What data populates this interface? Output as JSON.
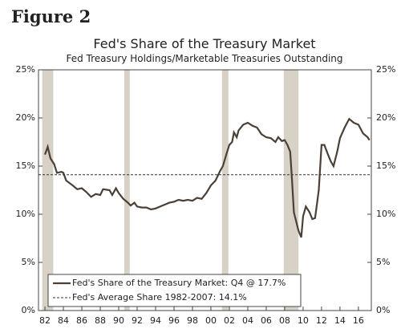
{
  "figure_label": "Figure 2",
  "chart_data": {
    "type": "line",
    "title": "Fed's Share of the Treasury Market",
    "subtitle": "Fed Treasury Holdings/Marketable Treasuries Outstanding",
    "xlim": [
      1981.3,
      2017.4
    ],
    "xticks": [
      {
        "value": 1982,
        "label": "82"
      },
      {
        "value": 1984,
        "label": "84"
      },
      {
        "value": 1986,
        "label": "86"
      },
      {
        "value": 1988,
        "label": "88"
      },
      {
        "value": 1990,
        "label": "90"
      },
      {
        "value": 1992,
        "label": "92"
      },
      {
        "value": 1994,
        "label": "94"
      },
      {
        "value": 1996,
        "label": "96"
      },
      {
        "value": 1998,
        "label": "98"
      },
      {
        "value": 2000,
        "label": "00"
      },
      {
        "value": 2002,
        "label": "02"
      },
      {
        "value": 2004,
        "label": "04"
      },
      {
        "value": 2006,
        "label": "06"
      },
      {
        "value": 2008,
        "label": "08"
      },
      {
        "value": 2010,
        "label": "10"
      },
      {
        "value": 2012,
        "label": "12"
      },
      {
        "value": 2014,
        "label": "14"
      },
      {
        "value": 2016,
        "label": "16"
      }
    ],
    "ylim": [
      0,
      25
    ],
    "yticks": [
      {
        "value": 0,
        "label": "0%"
      },
      {
        "value": 5,
        "label": "5%"
      },
      {
        "value": 10,
        "label": "10%"
      },
      {
        "value": 15,
        "label": "15%"
      },
      {
        "value": 20,
        "label": "20%"
      },
      {
        "value": 25,
        "label": "25%"
      }
    ],
    "shaded_periods": [
      [
        1981.7,
        1982.9
      ],
      [
        1990.6,
        1991.2
      ],
      [
        2001.2,
        2001.9
      ],
      [
        2007.9,
        2009.5
      ]
    ],
    "shade_color": "#d8d2c6",
    "legend": "lower left",
    "series": [
      {
        "name": "Fed's Share of the Treasury Market: Q4 @ 17.7%",
        "color": "#4b4036",
        "dash": false,
        "x": [
          1982,
          1982.3,
          1982.6,
          1983,
          1983.3,
          1983.8,
          1984,
          1984.3,
          1985,
          1985.5,
          1986,
          1986.5,
          1987,
          1987.5,
          1988,
          1988.3,
          1989,
          1989.3,
          1989.7,
          1990,
          1990.5,
          1991,
          1991.3,
          1991.7,
          1992,
          1992.5,
          1993,
          1993.5,
          1994,
          1994.5,
          1995,
          1995.5,
          1996,
          1996.5,
          1997,
          1997.5,
          1998,
          1998.5,
          1999,
          1999.5,
          2000,
          2000.5,
          2001,
          2001.3,
          2001.7,
          2002,
          2002.3,
          2002.5,
          2002.8,
          2003,
          2003.5,
          2004,
          2004.5,
          2005,
          2005.5,
          2006,
          2006.5,
          2007,
          2007.3,
          2007.7,
          2008,
          2008.3,
          2008.6,
          2008.8,
          2009,
          2009.5,
          2009.8,
          2010,
          2010.3,
          2010.7,
          2011,
          2011.3,
          2011.7,
          2012,
          2012.3,
          2012.7,
          2013,
          2013.3,
          2013.7,
          2014,
          2014.5,
          2015,
          2015.5,
          2016,
          2016.5,
          2017,
          2017.2
        ],
        "values": [
          16.2,
          17.0,
          15.8,
          15.2,
          14.3,
          14.4,
          14.3,
          13.5,
          13.0,
          12.6,
          12.7,
          12.3,
          11.8,
          12.1,
          12.0,
          12.6,
          12.5,
          12.0,
          12.7,
          12.2,
          11.6,
          11.2,
          10.9,
          11.2,
          10.8,
          10.7,
          10.7,
          10.5,
          10.6,
          10.8,
          11.0,
          11.2,
          11.3,
          11.5,
          11.4,
          11.5,
          11.4,
          11.7,
          11.6,
          12.2,
          13.0,
          13.5,
          14.5,
          15.0,
          16.3,
          17.2,
          17.5,
          18.5,
          18.0,
          18.7,
          19.3,
          19.5,
          19.2,
          19.0,
          18.3,
          18.0,
          17.9,
          17.5,
          18.0,
          17.6,
          17.7,
          17.2,
          16.5,
          13.5,
          10.2,
          8.3,
          7.6,
          9.8,
          10.8,
          10.2,
          9.5,
          9.6,
          12.5,
          17.2,
          17.2,
          16.2,
          15.5,
          15.0,
          16.5,
          17.9,
          19.0,
          19.9,
          19.5,
          19.3,
          18.4,
          18.0,
          17.7
        ]
      },
      {
        "name": "Fed's Average Share 1982-2007: 14.1%",
        "color": "#333333",
        "dash": true,
        "x": [
          1981.3,
          2017.4
        ],
        "values": [
          14.1,
          14.1
        ]
      }
    ]
  }
}
